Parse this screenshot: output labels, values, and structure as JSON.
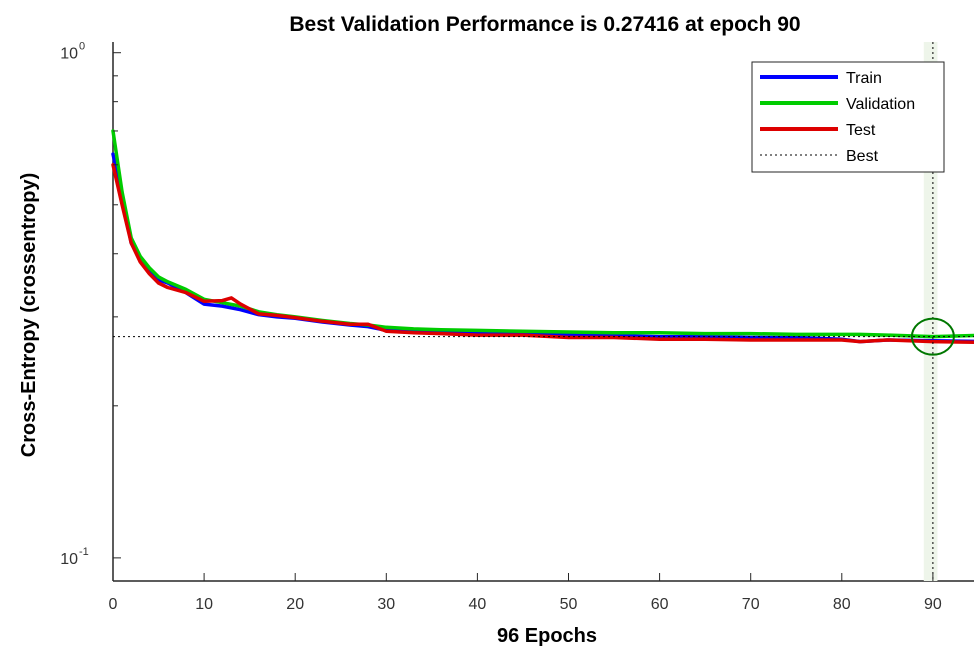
{
  "chart_data": {
    "type": "line",
    "title": "Best Validation Performance is 0.27416 at epoch 90",
    "xlabel": "96 Epochs",
    "ylabel": "Cross-Entropy  (crossentropy)",
    "y_scale": "log",
    "xlim": [
      0,
      95.5
    ],
    "ylim": [
      0.09,
      1.05
    ],
    "x_ticks": [
      "0",
      "10",
      "20",
      "30",
      "40",
      "50",
      "60",
      "70",
      "80",
      "90"
    ],
    "y_ticks": [
      {
        "base": "10",
        "exp": "0",
        "value": 1.0
      },
      {
        "base": "10",
        "exp": "-1",
        "value": 0.1
      }
    ],
    "legend_position": "top-right",
    "grid": false,
    "best": {
      "epoch": 90,
      "value": 0.27416
    },
    "series": [
      {
        "name": "Train",
        "color": "#0000ff",
        "x": [
          0,
          1,
          2,
          3,
          4,
          5,
          6,
          8,
          10,
          12,
          14,
          16,
          18,
          20,
          23,
          26,
          28,
          30,
          33,
          36,
          40,
          45,
          50,
          55,
          60,
          65,
          70,
          75,
          80,
          82,
          85,
          90,
          96
        ],
        "y": [
          0.63,
          0.52,
          0.42,
          0.39,
          0.37,
          0.355,
          0.35,
          0.335,
          0.318,
          0.315,
          0.31,
          0.303,
          0.3,
          0.298,
          0.293,
          0.289,
          0.287,
          0.282,
          0.28,
          0.279,
          0.278,
          0.277,
          0.276,
          0.275,
          0.274,
          0.274,
          0.273,
          0.273,
          0.271,
          0.268,
          0.27,
          0.269,
          0.268
        ]
      },
      {
        "name": "Validation",
        "color": "#00cc00",
        "x": [
          0,
          1,
          2,
          3,
          4,
          5,
          6,
          8,
          10,
          12,
          14,
          16,
          18,
          20,
          23,
          26,
          28,
          30,
          33,
          36,
          40,
          45,
          50,
          55,
          60,
          65,
          70,
          75,
          80,
          82,
          85,
          90,
          96
        ],
        "y": [
          0.7,
          0.53,
          0.43,
          0.395,
          0.375,
          0.36,
          0.352,
          0.34,
          0.325,
          0.32,
          0.315,
          0.307,
          0.303,
          0.3,
          0.295,
          0.291,
          0.289,
          0.286,
          0.284,
          0.283,
          0.282,
          0.281,
          0.28,
          0.279,
          0.279,
          0.278,
          0.278,
          0.277,
          0.277,
          0.277,
          0.276,
          0.27416,
          0.276
        ]
      },
      {
        "name": "Test",
        "color": "#dd0000",
        "x": [
          0,
          1,
          2,
          3,
          4,
          5,
          6,
          8,
          10,
          12,
          13,
          14,
          16,
          18,
          20,
          23,
          26,
          28,
          30,
          33,
          36,
          40,
          45,
          50,
          55,
          60,
          65,
          70,
          75,
          80,
          82,
          85,
          90,
          96
        ],
        "y": [
          0.6,
          0.5,
          0.42,
          0.385,
          0.365,
          0.35,
          0.343,
          0.335,
          0.322,
          0.323,
          0.327,
          0.318,
          0.304,
          0.302,
          0.299,
          0.294,
          0.29,
          0.29,
          0.281,
          0.279,
          0.278,
          0.276,
          0.276,
          0.273,
          0.273,
          0.271,
          0.271,
          0.27,
          0.27,
          0.27,
          0.268,
          0.27,
          0.268,
          0.267
        ]
      }
    ],
    "legend": [
      {
        "label": "Train",
        "color": "#0000ff",
        "style": "solid"
      },
      {
        "label": "Validation",
        "color": "#00cc00",
        "style": "solid"
      },
      {
        "label": "Test",
        "color": "#dd0000",
        "style": "solid"
      },
      {
        "label": "Best",
        "color": "#000000",
        "style": "dotted"
      }
    ]
  }
}
